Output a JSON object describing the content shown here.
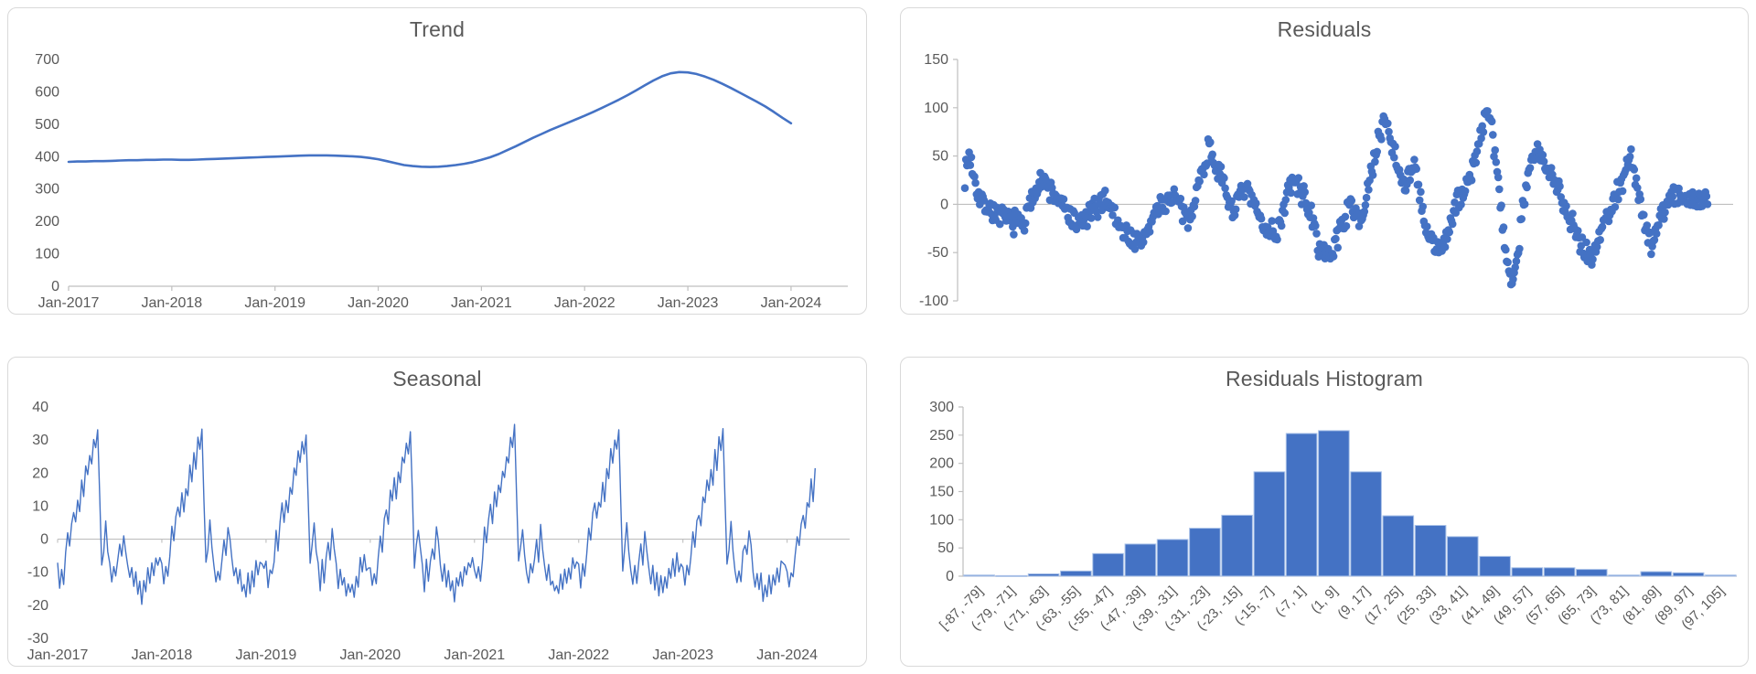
{
  "theme": {
    "accent": "#4472C4",
    "bar_border": "#A9C1E8",
    "title_color": "#595959",
    "axis_text_color": "#595959",
    "axis_line_color": "#BFBFBF",
    "zero_line_color": "#BFBFBF",
    "panel_border": "#D9D9D9",
    "background": "#FFFFFF"
  },
  "chart_data": [
    {
      "id": "trend",
      "type": "line",
      "title": "Trend",
      "x_unit": "month",
      "x_labels": [
        "Jan-2017",
        "Jan-2018",
        "Jan-2019",
        "Jan-2020",
        "Jan-2021",
        "Jan-2022",
        "Jan-2023",
        "Jan-2024"
      ],
      "axis_span_years": 7.55,
      "ylim": [
        0,
        700
      ],
      "y_ticks": [
        700,
        600,
        500,
        400,
        300,
        200,
        100,
        0
      ],
      "grid": false,
      "values": [
        384,
        385,
        385,
        386,
        386,
        387,
        388,
        389,
        389,
        390,
        390,
        391,
        391,
        390,
        390,
        391,
        392,
        393,
        394,
        395,
        396,
        397,
        398,
        399,
        400,
        401,
        402,
        403,
        404,
        404,
        404,
        403,
        402,
        401,
        399,
        396,
        392,
        386,
        380,
        374,
        371,
        369,
        368,
        369,
        371,
        374,
        378,
        383,
        390,
        398,
        408,
        420,
        432,
        445,
        458,
        470,
        482,
        493,
        504,
        515,
        526,
        538,
        550,
        563,
        576,
        590,
        605,
        620,
        635,
        648,
        657,
        661,
        660,
        655,
        647,
        637,
        625,
        612,
        598,
        584,
        570,
        555,
        538,
        520,
        503
      ]
    },
    {
      "id": "residuals",
      "type": "scatter",
      "title": "Residuals",
      "ylim": [
        -100,
        150
      ],
      "y_ticks": [
        150,
        100,
        50,
        0,
        -50,
        -100
      ],
      "grid": false,
      "n_points": 700,
      "point_radius": 4.3,
      "noise_amp": 10,
      "noise_amp2": 4,
      "seed": 7,
      "clamp": [
        -88,
        103
      ],
      "waypoints": [
        [
          0.0,
          30
        ],
        [
          0.006,
          52
        ],
        [
          0.02,
          5
        ],
        [
          0.05,
          -15
        ],
        [
          0.08,
          -20
        ],
        [
          0.1,
          28
        ],
        [
          0.125,
          5
        ],
        [
          0.15,
          -22
        ],
        [
          0.17,
          -10
        ],
        [
          0.19,
          8
        ],
        [
          0.21,
          -25
        ],
        [
          0.235,
          -42
        ],
        [
          0.26,
          -5
        ],
        [
          0.28,
          10
        ],
        [
          0.3,
          -18
        ],
        [
          0.33,
          62
        ],
        [
          0.345,
          25
        ],
        [
          0.36,
          -5
        ],
        [
          0.38,
          15
        ],
        [
          0.4,
          -20
        ],
        [
          0.42,
          -30
        ],
        [
          0.44,
          25
        ],
        [
          0.46,
          5
        ],
        [
          0.475,
          -40
        ],
        [
          0.49,
          -58
        ],
        [
          0.505,
          -25
        ],
        [
          0.52,
          0
        ],
        [
          0.535,
          -15
        ],
        [
          0.55,
          40
        ],
        [
          0.565,
          93
        ],
        [
          0.578,
          55
        ],
        [
          0.59,
          20
        ],
        [
          0.605,
          40
        ],
        [
          0.62,
          -25
        ],
        [
          0.635,
          -50
        ],
        [
          0.65,
          -30
        ],
        [
          0.665,
          5
        ],
        [
          0.68,
          25
        ],
        [
          0.695,
          75
        ],
        [
          0.705,
          97
        ],
        [
          0.715,
          45
        ],
        [
          0.725,
          -30
        ],
        [
          0.735,
          -83
        ],
        [
          0.745,
          -45
        ],
        [
          0.755,
          20
        ],
        [
          0.765,
          48
        ],
        [
          0.775,
          53
        ],
        [
          0.785,
          30
        ],
        [
          0.8,
          18
        ],
        [
          0.815,
          -15
        ],
        [
          0.83,
          -40
        ],
        [
          0.845,
          -56
        ],
        [
          0.86,
          -20
        ],
        [
          0.875,
          5
        ],
        [
          0.885,
          25
        ],
        [
          0.895,
          52
        ],
        [
          0.905,
          20
        ],
        [
          0.915,
          -25
        ],
        [
          0.925,
          -40
        ],
        [
          0.94,
          -5
        ],
        [
          0.955,
          12
        ],
        [
          0.97,
          5
        ],
        [
          0.985,
          8
        ],
        [
          1.0,
          2
        ]
      ]
    },
    {
      "id": "seasonal",
      "type": "line",
      "title": "Seasonal",
      "x_labels": [
        "Jan-2017",
        "Jan-2018",
        "Jan-2019",
        "Jan-2020",
        "Jan-2021",
        "Jan-2022",
        "Jan-2023",
        "Jan-2024"
      ],
      "axis_span_years": 7.6,
      "ylim": [
        -30,
        40
      ],
      "y_ticks": [
        40,
        30,
        20,
        10,
        0,
        -10,
        -20,
        -30
      ],
      "grid": false,
      "cycles": 7,
      "extra_weeks": 15,
      "jitter": 2,
      "seed": 3,
      "weekly_pattern": [
        -8,
        -13,
        -9,
        -12,
        -5,
        2,
        -2,
        6,
        9,
        5,
        13,
        10,
        17,
        13,
        21,
        18,
        26,
        22,
        31,
        27,
        33,
        12,
        -8,
        -2,
        4,
        -3,
        -9,
        -14,
        -8,
        -12,
        -5,
        -1,
        -6,
        3,
        -2,
        -8,
        -13,
        -9,
        -15,
        -11,
        -17,
        -13,
        -18,
        -12,
        -16,
        -10,
        -13,
        -7,
        -11,
        -6,
        -9,
        -7
      ]
    },
    {
      "id": "residuals_histogram",
      "type": "bar",
      "title": "Residuals Histogram",
      "categories": [
        "[-87, -79]",
        "(-79, -71]",
        "(-71, -63]",
        "(-63, -55]",
        "(-55, -47]",
        "(-47, -39]",
        "(-39, -31]",
        "(-31, -23]",
        "(-23, -15]",
        "(-15, -7]",
        "(-7, 1]",
        "(1, 9]",
        "(9, 17]",
        "(17, 25]",
        "(25, 33]",
        "(33, 41]",
        "(41, 49]",
        "(49, 57]",
        "(57, 65]",
        "(65, 73]",
        "(73, 81]",
        "(81, 89]",
        "(89, 97]",
        "(97, 105]"
      ],
      "values": [
        2,
        1,
        4,
        9,
        40,
        57,
        65,
        85,
        108,
        185,
        253,
        258,
        185,
        107,
        90,
        70,
        35,
        15,
        15,
        12,
        2,
        8,
        6,
        2
      ],
      "ylim": [
        0,
        300
      ],
      "y_ticks": [
        300,
        250,
        200,
        150,
        100,
        50,
        0
      ],
      "grid": false
    }
  ]
}
